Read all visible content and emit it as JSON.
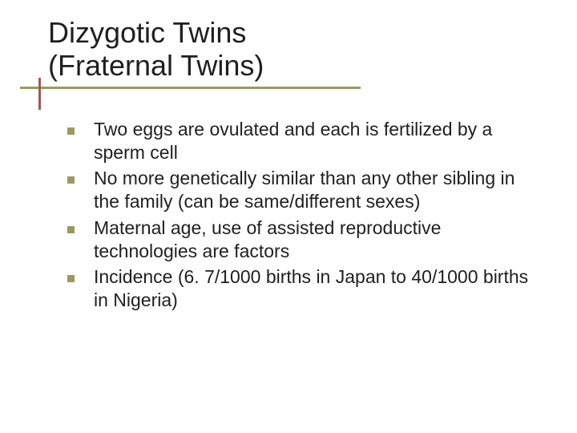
{
  "slide": {
    "title_line1": "Dizygotic Twins",
    "title_line2": "(Fraternal Twins)",
    "bullets": [
      "Two eggs are ovulated and each is fertilized by a sperm cell",
      "No more genetically similar than any other sibling in the family (can be same/different sexes)",
      "Maternal age, use of assisted reproductive technologies are factors",
      "Incidence (6. 7/1000 births in Japan to 40/1000 births in Nigeria)"
    ]
  },
  "style": {
    "background_color": "#ffffff",
    "title_color": "#1f1f1f",
    "title_fontsize": 36,
    "body_color": "#1f1f1f",
    "body_fontsize": 23,
    "bullet_marker_color": "#9a9a60",
    "bullet_marker_size": 9,
    "underline_color": "#9a9a60",
    "sidebar_accent_color": "#a05858",
    "font_family": "Verdana"
  }
}
